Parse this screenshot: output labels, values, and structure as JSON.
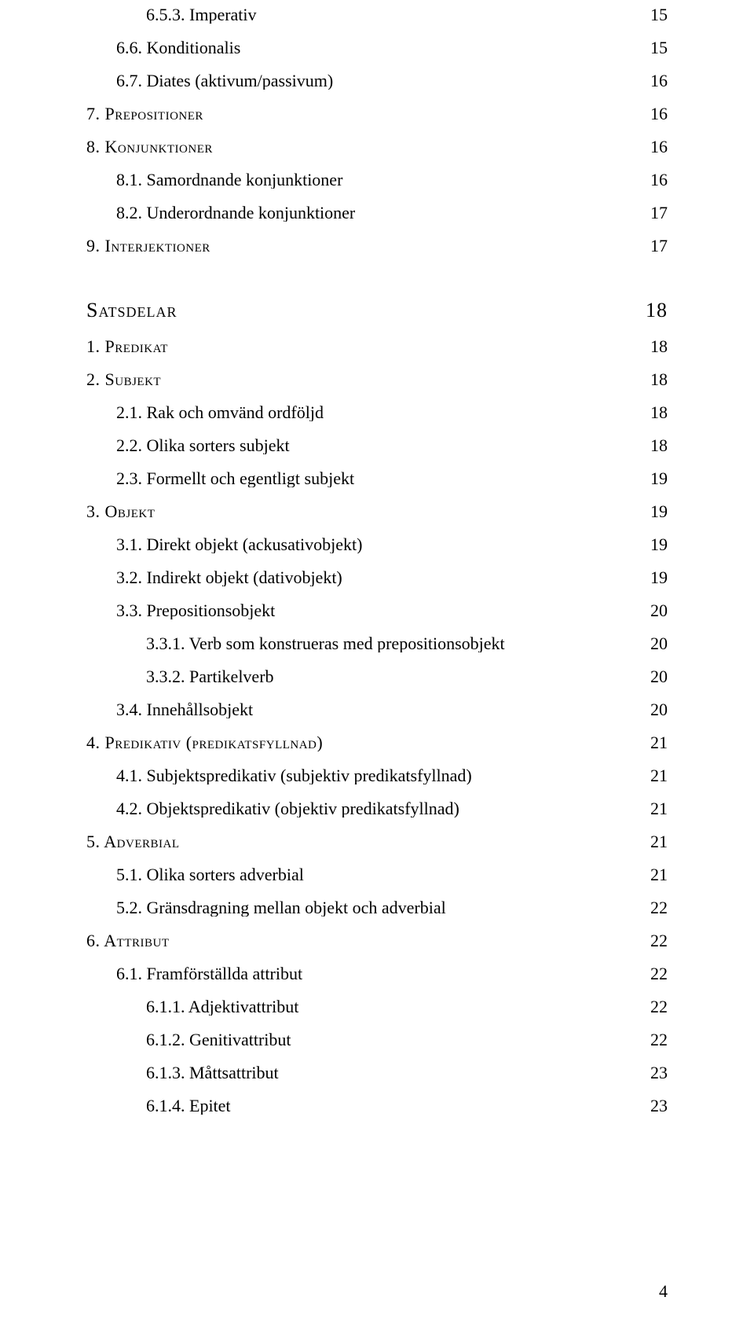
{
  "entries": [
    {
      "indent": 2,
      "label": "6.5.3.   Imperativ",
      "page": "15",
      "smallcaps": false
    },
    {
      "indent": 1,
      "label": "6.6.   Konditionalis",
      "page": "15",
      "smallcaps": false
    },
    {
      "indent": 1,
      "label": "6.7.   Diates (aktivum/passivum)",
      "page": "16",
      "smallcaps": false
    },
    {
      "indent": 0,
      "label": "7. Prepositioner",
      "page": "16",
      "smallcaps": true
    },
    {
      "indent": 0,
      "label": "8. Konjunktioner",
      "page": "16",
      "smallcaps": true
    },
    {
      "indent": 1,
      "label": "8.1.   Samordnande konjunktioner",
      "page": "16",
      "smallcaps": false
    },
    {
      "indent": 1,
      "label": "8.2.   Underordnande konjunktioner",
      "page": "17",
      "smallcaps": false
    },
    {
      "indent": 0,
      "label": "9. Interjektioner",
      "page": "17",
      "smallcaps": true
    }
  ],
  "section_title": "Satsdelar",
  "section_page": "18",
  "entries2": [
    {
      "indent": 0,
      "label": "1. Predikat",
      "page": "18",
      "smallcaps": true
    },
    {
      "indent": 0,
      "label": "2. Subjekt",
      "page": "18",
      "smallcaps": true
    },
    {
      "indent": 1,
      "label": "2.1.   Rak och omvänd ordföljd",
      "page": "18",
      "smallcaps": false
    },
    {
      "indent": 1,
      "label": "2.2.   Olika sorters subjekt",
      "page": "18",
      "smallcaps": false
    },
    {
      "indent": 1,
      "label": "2.3.   Formellt och egentligt subjekt",
      "page": "19",
      "smallcaps": false
    },
    {
      "indent": 0,
      "label": "3. Objekt",
      "page": "19",
      "smallcaps": true
    },
    {
      "indent": 1,
      "label": "3.1.   Direkt objekt (ackusativobjekt)",
      "page": "19",
      "smallcaps": false
    },
    {
      "indent": 1,
      "label": "3.2.   Indirekt objekt (dativobjekt)",
      "page": "19",
      "smallcaps": false
    },
    {
      "indent": 1,
      "label": "3.3.   Prepositionsobjekt",
      "page": "20",
      "smallcaps": false
    },
    {
      "indent": 2,
      "label": "3.3.1.   Verb som konstrueras med prepositionsobjekt",
      "page": "20",
      "smallcaps": false
    },
    {
      "indent": 2,
      "label": "3.3.2.   Partikelverb",
      "page": "20",
      "smallcaps": false
    },
    {
      "indent": 1,
      "label": "3.4.   Innehållsobjekt",
      "page": "20",
      "smallcaps": false
    },
    {
      "indent": 0,
      "label": "4. Predikativ (predikatsfyllnad)",
      "page": "21",
      "smallcaps": true
    },
    {
      "indent": 1,
      "label": "4.1.   Subjektspredikativ (subjektiv predikatsfyllnad)",
      "page": "21",
      "smallcaps": false
    },
    {
      "indent": 1,
      "label": "4.2.   Objektspredikativ (objektiv predikatsfyllnad)",
      "page": "21",
      "smallcaps": false
    },
    {
      "indent": 0,
      "label": "5. Adverbial",
      "page": "21",
      "smallcaps": true
    },
    {
      "indent": 1,
      "label": "5.1.   Olika sorters adverbial",
      "page": "21",
      "smallcaps": false
    },
    {
      "indent": 1,
      "label": "5.2.   Gränsdragning mellan objekt och adverbial",
      "page": "22",
      "smallcaps": false
    },
    {
      "indent": 0,
      "label": "6. Attribut",
      "page": "22",
      "smallcaps": true
    },
    {
      "indent": 1,
      "label": "6.1.   Framförställda attribut",
      "page": "22",
      "smallcaps": false
    },
    {
      "indent": 2,
      "label": "6.1.1.   Adjektivattribut",
      "page": "22",
      "smallcaps": false
    },
    {
      "indent": 2,
      "label": "6.1.2.   Genitivattribut",
      "page": "22",
      "smallcaps": false
    },
    {
      "indent": 2,
      "label": "6.1.3.   Måttsattribut",
      "page": "23",
      "smallcaps": false
    },
    {
      "indent": 2,
      "label": "6.1.4.   Epitet",
      "page": "23",
      "smallcaps": false
    }
  ],
  "footer_page": "4"
}
